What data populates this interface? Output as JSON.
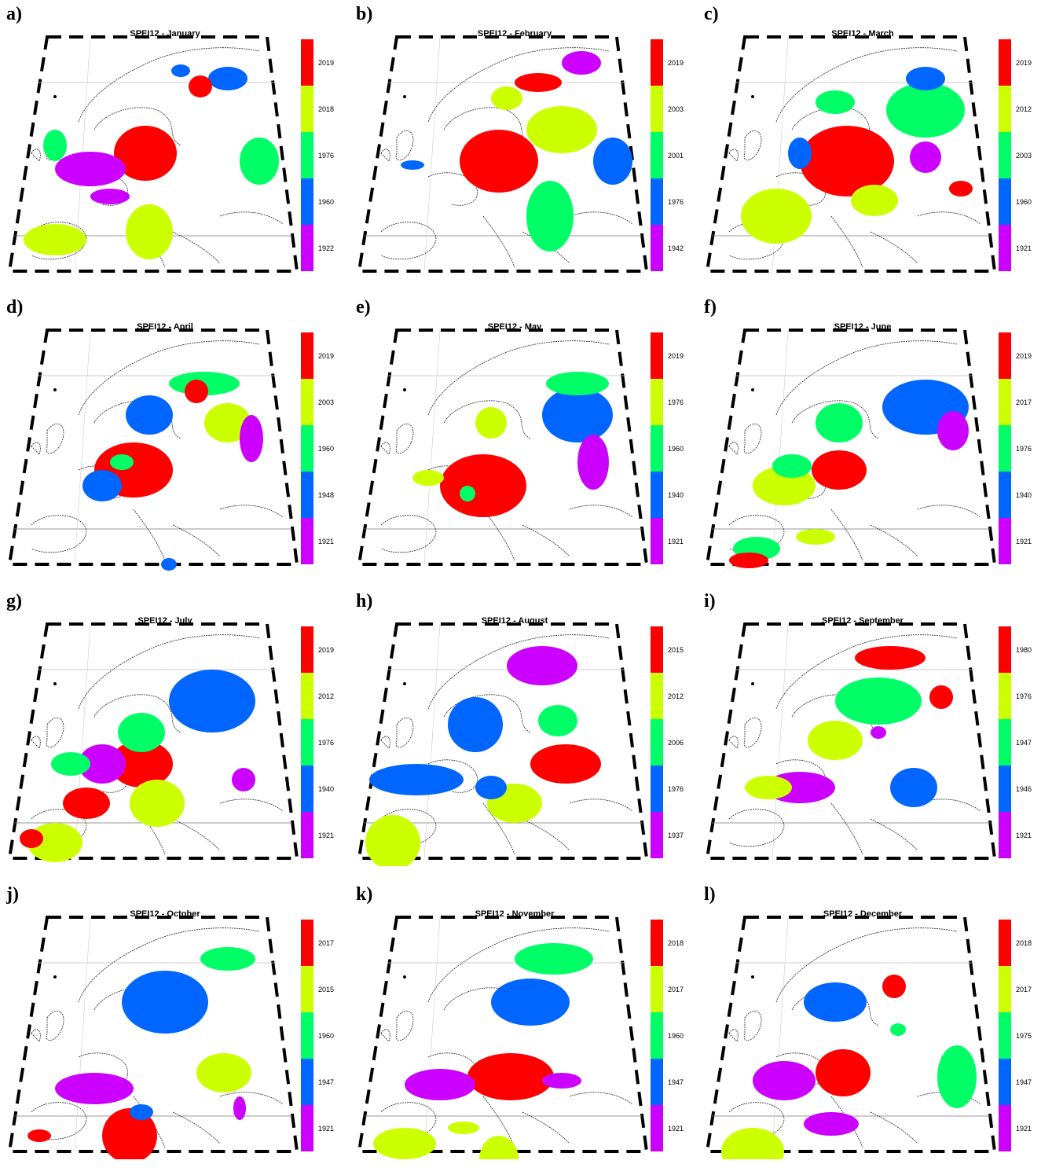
{
  "colors": {
    "c1": "#ff0000",
    "c2": "#ccff00",
    "c3": "#00ff66",
    "c4": "#0066ff",
    "c5": "#cc00ff"
  },
  "panels": [
    {
      "letter": "a)",
      "title": "SPEI12 - January",
      "years": [
        "2019",
        "2018",
        "1976",
        "1960",
        "1922"
      ]
    },
    {
      "letter": "b)",
      "title": "SPEI12 - February",
      "years": [
        "2019",
        "2003",
        "2001",
        "1976",
        "1942"
      ]
    },
    {
      "letter": "c)",
      "title": "SPEI12 - March",
      "years": [
        "2019",
        "2012",
        "2003",
        "1960",
        "1921"
      ]
    },
    {
      "letter": "d)",
      "title": "SPEI12 - April",
      "years": [
        "2019",
        "2003",
        "1960",
        "1948",
        "1921"
      ]
    },
    {
      "letter": "e)",
      "title": "SPEI12 - May",
      "years": [
        "2019",
        "1976",
        "1960",
        "1940",
        "1921"
      ]
    },
    {
      "letter": "f)",
      "title": "SPEI12 - June",
      "years": [
        "2019",
        "2017",
        "1976",
        "1940",
        "1921"
      ]
    },
    {
      "letter": "g)",
      "title": "SPEI12 - July",
      "years": [
        "2019",
        "2012",
        "1976",
        "1940",
        "1921"
      ]
    },
    {
      "letter": "h)",
      "title": "SPEI12 - August",
      "years": [
        "2015",
        "2012",
        "2006",
        "1976",
        "1937"
      ]
    },
    {
      "letter": "i)",
      "title": "SPEI12 - September",
      "years": [
        "1980",
        "1976",
        "1947",
        "1946",
        "1921"
      ]
    },
    {
      "letter": "j)",
      "title": "SPEI12 - October",
      "years": [
        "2017",
        "2015",
        "1960",
        "1947",
        "1921"
      ]
    },
    {
      "letter": "k)",
      "title": "SPEI12 - November",
      "years": [
        "2018",
        "2017",
        "1960",
        "1947",
        "1921"
      ]
    },
    {
      "letter": "l)",
      "title": "SPEI12 - December",
      "years": [
        "2018",
        "2017",
        "1975",
        "1947",
        "1921"
      ]
    }
  ]
}
